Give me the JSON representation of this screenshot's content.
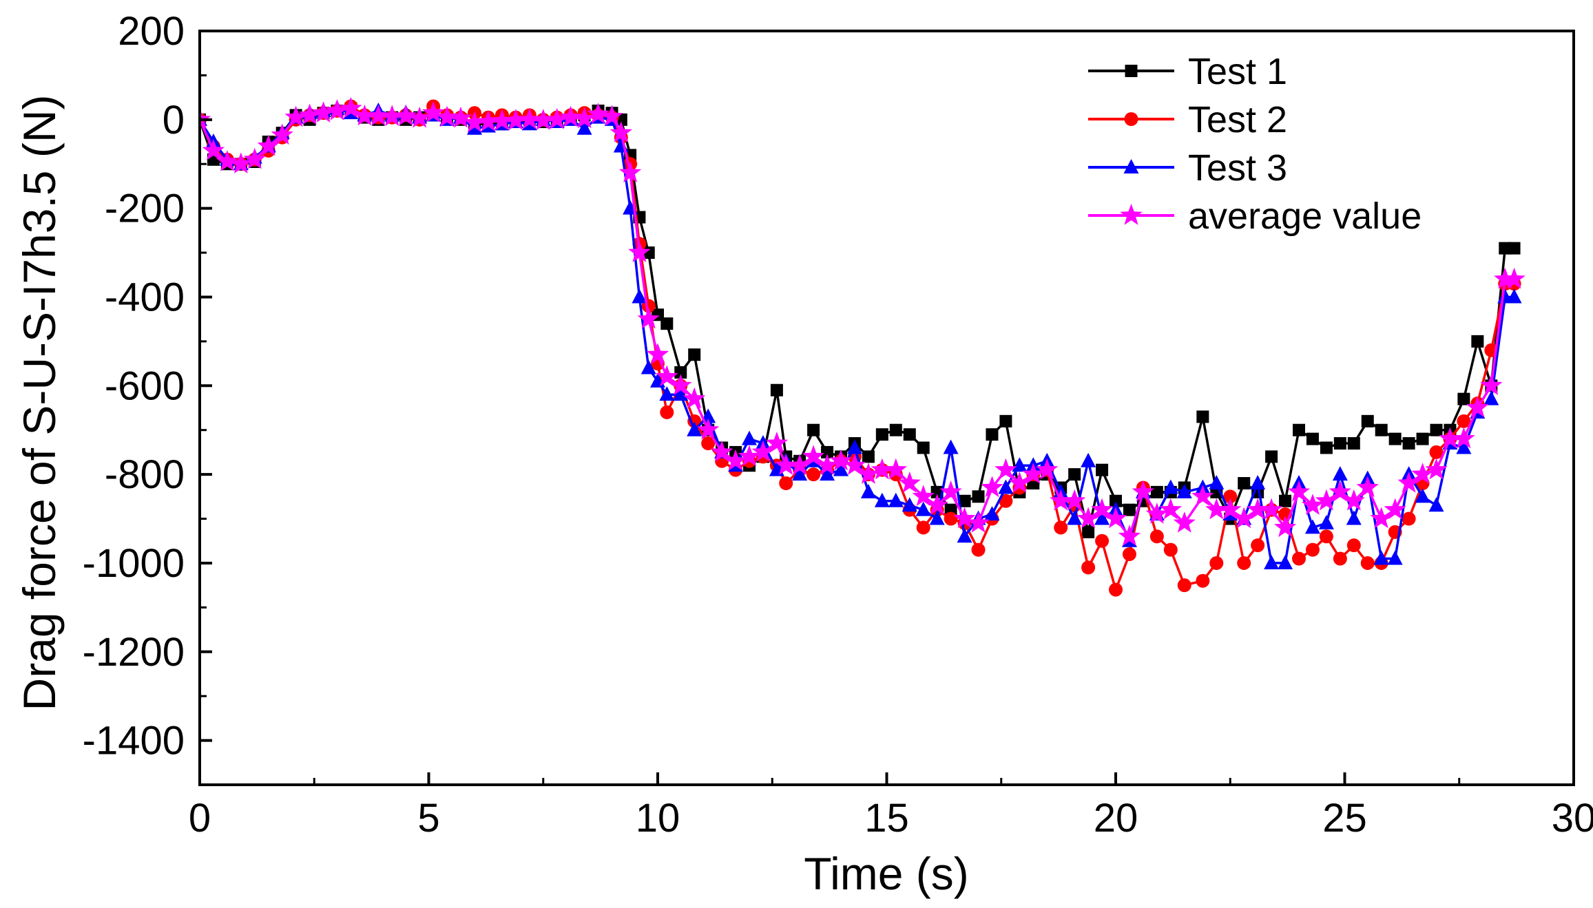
{
  "chart_data": {
    "type": "line",
    "title": "",
    "xlabel": "Time (s)",
    "ylabel": "Drag force of S-U-S-I7h3.5 (N)",
    "xlim": [
      0,
      30
    ],
    "ylim": [
      -1500,
      200
    ],
    "xticks": [
      0,
      5,
      10,
      15,
      20,
      25,
      30
    ],
    "yticks": [
      200,
      0,
      -200,
      -400,
      -600,
      -800,
      -1000,
      -1200,
      -1400
    ],
    "grid": false,
    "legend_position": "top-right",
    "series": [
      {
        "name": "Test 1",
        "color": "#000000",
        "marker": "square",
        "x": [
          0,
          0.3,
          0.6,
          0.9,
          1.2,
          1.5,
          1.8,
          2.1,
          2.4,
          2.7,
          3.0,
          3.3,
          3.6,
          3.9,
          4.2,
          4.5,
          4.8,
          5.1,
          5.4,
          5.7,
          6.0,
          6.3,
          6.6,
          6.9,
          7.2,
          7.5,
          7.8,
          8.1,
          8.4,
          8.7,
          9.0,
          9.2,
          9.4,
          9.6,
          9.8,
          10.0,
          10.2,
          10.5,
          10.8,
          11.1,
          11.4,
          11.7,
          12.0,
          12.3,
          12.6,
          12.8,
          13.1,
          13.4,
          13.7,
          14.0,
          14.3,
          14.6,
          14.9,
          15.2,
          15.5,
          15.8,
          16.1,
          16.4,
          16.7,
          17.0,
          17.3,
          17.6,
          17.9,
          18.2,
          18.5,
          18.8,
          19.1,
          19.4,
          19.7,
          20.0,
          20.3,
          20.6,
          20.9,
          21.2,
          21.5,
          21.9,
          22.2,
          22.5,
          22.8,
          23.1,
          23.4,
          23.7,
          24.0,
          24.3,
          24.6,
          24.9,
          25.2,
          25.5,
          25.8,
          26.1,
          26.4,
          26.7,
          27.0,
          27.3,
          27.6,
          27.9,
          28.2,
          28.5,
          28.7
        ],
        "values": [
          0,
          -90,
          -100,
          -100,
          -95,
          -50,
          -30,
          10,
          0,
          15,
          20,
          25,
          5,
          0,
          5,
          0,
          5,
          10,
          5,
          0,
          -15,
          -5,
          -10,
          -5,
          0,
          -5,
          0,
          5,
          10,
          20,
          15,
          0,
          -80,
          -220,
          -300,
          -440,
          -460,
          -570,
          -530,
          -700,
          -740,
          -750,
          -780,
          -760,
          -610,
          -760,
          -770,
          -700,
          -750,
          -760,
          -730,
          -760,
          -710,
          -700,
          -710,
          -740,
          -840,
          -880,
          -860,
          -850,
          -710,
          -680,
          -840,
          -820,
          -800,
          -830,
          -800,
          -930,
          -790,
          -860,
          -880,
          -860,
          -840,
          -840,
          -830,
          -670,
          -840,
          -900,
          -820,
          -840,
          -760,
          -860,
          -700,
          -720,
          -740,
          -730,
          -730,
          -680,
          -700,
          -720,
          -730,
          -720,
          -700,
          -700,
          -630,
          -500,
          -600,
          -290,
          -290
        ]
      },
      {
        "name": "Test 2",
        "color": "#ff0000",
        "marker": "circle",
        "x": [
          0,
          0.3,
          0.6,
          0.9,
          1.2,
          1.5,
          1.8,
          2.1,
          2.4,
          2.7,
          3.0,
          3.3,
          3.6,
          3.9,
          4.2,
          4.5,
          4.8,
          5.1,
          5.4,
          5.7,
          6.0,
          6.3,
          6.6,
          6.9,
          7.2,
          7.5,
          7.8,
          8.1,
          8.4,
          8.7,
          9.0,
          9.2,
          9.4,
          9.6,
          9.8,
          10.0,
          10.2,
          10.5,
          10.8,
          11.1,
          11.4,
          11.7,
          12.0,
          12.3,
          12.6,
          12.8,
          13.1,
          13.4,
          13.7,
          14.0,
          14.3,
          14.6,
          14.9,
          15.2,
          15.5,
          15.8,
          16.1,
          16.4,
          16.7,
          17.0,
          17.3,
          17.6,
          17.9,
          18.2,
          18.5,
          18.8,
          19.1,
          19.4,
          19.7,
          20.0,
          20.3,
          20.6,
          20.9,
          21.2,
          21.5,
          21.9,
          22.2,
          22.5,
          22.8,
          23.1,
          23.4,
          23.7,
          24.0,
          24.3,
          24.6,
          24.9,
          25.2,
          25.5,
          25.8,
          26.1,
          26.4,
          26.7,
          27.0,
          27.3,
          27.6,
          27.9,
          28.2,
          28.5,
          28.7
        ],
        "values": [
          0,
          -60,
          -90,
          -100,
          -90,
          -70,
          -40,
          0,
          10,
          15,
          20,
          30,
          10,
          5,
          5,
          10,
          0,
          30,
          10,
          5,
          15,
          5,
          10,
          5,
          10,
          0,
          5,
          10,
          15,
          10,
          5,
          -40,
          -100,
          -280,
          -420,
          -550,
          -660,
          -600,
          -680,
          -730,
          -770,
          -790,
          -770,
          -760,
          -780,
          -820,
          -790,
          -800,
          -790,
          -770,
          -760,
          -800,
          -790,
          -800,
          -880,
          -920,
          -880,
          -900,
          -910,
          -970,
          -900,
          -860,
          -830,
          -800,
          -790,
          -920,
          -870,
          -1010,
          -950,
          -1060,
          -980,
          -830,
          -940,
          -970,
          -1050,
          -1040,
          -1000,
          -850,
          -1000,
          -960,
          -880,
          -890,
          -990,
          -970,
          -940,
          -990,
          -960,
          -1000,
          -1000,
          -930,
          -900,
          -820,
          -750,
          -720,
          -680,
          -640,
          -520,
          -370,
          -370
        ]
      },
      {
        "name": "Test 3",
        "color": "#0000ff",
        "marker": "triangle",
        "x": [
          0,
          0.3,
          0.6,
          0.9,
          1.2,
          1.5,
          1.8,
          2.1,
          2.4,
          2.7,
          3.0,
          3.3,
          3.6,
          3.9,
          4.2,
          4.5,
          4.8,
          5.1,
          5.4,
          5.7,
          6.0,
          6.3,
          6.6,
          6.9,
          7.2,
          7.5,
          7.8,
          8.1,
          8.4,
          8.7,
          9.0,
          9.2,
          9.4,
          9.6,
          9.8,
          10.0,
          10.2,
          10.5,
          10.8,
          11.1,
          11.4,
          11.7,
          12.0,
          12.3,
          12.6,
          12.8,
          13.1,
          13.4,
          13.7,
          14.0,
          14.3,
          14.6,
          14.9,
          15.2,
          15.5,
          15.8,
          16.1,
          16.4,
          16.7,
          17.0,
          17.3,
          17.6,
          17.9,
          18.2,
          18.5,
          18.8,
          19.1,
          19.4,
          19.7,
          20.0,
          20.3,
          20.6,
          20.9,
          21.2,
          21.5,
          21.9,
          22.2,
          22.5,
          22.8,
          23.1,
          23.4,
          23.7,
          24.0,
          24.3,
          24.6,
          24.9,
          25.2,
          25.5,
          25.8,
          26.1,
          26.4,
          26.7,
          27.0,
          27.3,
          27.6,
          27.9,
          28.2,
          28.5,
          28.7
        ],
        "values": [
          0,
          -50,
          -90,
          -100,
          -85,
          -60,
          -30,
          5,
          15,
          20,
          25,
          15,
          10,
          20,
          10,
          15,
          5,
          10,
          0,
          5,
          -20,
          -15,
          -10,
          -5,
          -10,
          0,
          -5,
          0,
          -20,
          5,
          0,
          -60,
          -200,
          -400,
          -560,
          -590,
          -620,
          -620,
          -700,
          -670,
          -750,
          -780,
          -720,
          -730,
          -790,
          -770,
          -800,
          -770,
          -800,
          -790,
          -740,
          -840,
          -860,
          -860,
          -870,
          -880,
          -900,
          -740,
          -940,
          -900,
          -890,
          -830,
          -780,
          -780,
          -770,
          -840,
          -900,
          -770,
          -900,
          -880,
          -950,
          -840,
          -890,
          -830,
          -840,
          -830,
          -820,
          -890,
          -900,
          -820,
          -1000,
          -1000,
          -820,
          -920,
          -910,
          -800,
          -900,
          -810,
          -990,
          -990,
          -800,
          -850,
          -870,
          -730,
          -740,
          -660,
          -630,
          -400,
          -400
        ]
      },
      {
        "name": "average value",
        "color": "#ff00ff",
        "marker": "star",
        "x": [
          0,
          0.3,
          0.6,
          0.9,
          1.2,
          1.5,
          1.8,
          2.1,
          2.4,
          2.7,
          3.0,
          3.3,
          3.6,
          3.9,
          4.2,
          4.5,
          4.8,
          5.1,
          5.4,
          5.7,
          6.0,
          6.3,
          6.6,
          6.9,
          7.2,
          7.5,
          7.8,
          8.1,
          8.4,
          8.7,
          9.0,
          9.2,
          9.4,
          9.6,
          9.8,
          10.0,
          10.2,
          10.5,
          10.8,
          11.1,
          11.4,
          11.7,
          12.0,
          12.3,
          12.6,
          12.8,
          13.1,
          13.4,
          13.7,
          14.0,
          14.3,
          14.6,
          14.9,
          15.2,
          15.5,
          15.8,
          16.1,
          16.4,
          16.7,
          17.0,
          17.3,
          17.6,
          17.9,
          18.2,
          18.5,
          18.8,
          19.1,
          19.4,
          19.7,
          20.0,
          20.3,
          20.6,
          20.9,
          21.2,
          21.5,
          21.9,
          22.2,
          22.5,
          22.8,
          23.1,
          23.4,
          23.7,
          24.0,
          24.3,
          24.6,
          24.9,
          25.2,
          25.5,
          25.8,
          26.1,
          26.4,
          26.7,
          27.0,
          27.3,
          27.6,
          27.9,
          28.2,
          28.5,
          28.7
        ],
        "values": [
          0,
          -70,
          -95,
          -100,
          -90,
          -60,
          -35,
          5,
          10,
          15,
          20,
          25,
          8,
          8,
          7,
          8,
          3,
          15,
          5,
          3,
          -7,
          -5,
          -3,
          -2,
          0,
          -2,
          0,
          5,
          2,
          12,
          7,
          -30,
          -120,
          -300,
          -450,
          -530,
          -580,
          -600,
          -630,
          -700,
          -750,
          -770,
          -760,
          -750,
          -730,
          -780,
          -780,
          -760,
          -780,
          -770,
          -780,
          -800,
          -790,
          -790,
          -820,
          -850,
          -870,
          -840,
          -900,
          -910,
          -830,
          -790,
          -820,
          -800,
          -790,
          -860,
          -860,
          -900,
          -880,
          -900,
          -940,
          -840,
          -890,
          -880,
          -910,
          -850,
          -880,
          -880,
          -900,
          -880,
          -880,
          -920,
          -840,
          -870,
          -860,
          -840,
          -860,
          -830,
          -900,
          -880,
          -820,
          -800,
          -790,
          -720,
          -720,
          -650,
          -600,
          -360,
          -360
        ]
      }
    ]
  }
}
